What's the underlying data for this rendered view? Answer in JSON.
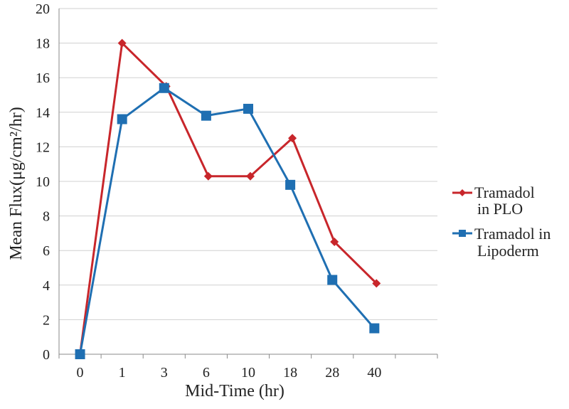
{
  "chart_data": {
    "type": "line",
    "title": "",
    "xlabel": "Mid-Time (hr)",
    "ylabel": "Mean Flux(μg/cm²/hr)",
    "categories": [
      "0",
      "1",
      "3",
      "6",
      "10",
      "18",
      "28",
      "40",
      ""
    ],
    "ylim": [
      0,
      20
    ],
    "yticks": [
      "0",
      "2",
      "4",
      "6",
      "8",
      "10",
      "12",
      "14",
      "16",
      "18",
      "20"
    ],
    "grid": true,
    "legend_position": "right",
    "series": [
      {
        "name": "Tramadol in PLO",
        "legend_lines": [
          "Tramadol",
          "in PLO"
        ],
        "color": "#c8262b",
        "marker": "diamond",
        "x": [
          0,
          1,
          2.05,
          3.05,
          4.05,
          5.05,
          6.05,
          7.05,
          8.05
        ],
        "values": [
          0,
          18.0,
          15.5,
          10.3,
          10.3,
          12.5,
          6.5,
          4.1,
          null
        ]
      },
      {
        "name": "Tramadol in Lipoderm",
        "legend_lines": [
          "Tramadol in",
          "Lipoderm"
        ],
        "color": "#1f6fb2",
        "marker": "square",
        "x": [
          0,
          1,
          2,
          3,
          4,
          5,
          6,
          7,
          8
        ],
        "values": [
          0,
          13.6,
          15.4,
          13.8,
          14.2,
          9.8,
          4.3,
          1.5,
          null
        ]
      }
    ]
  }
}
